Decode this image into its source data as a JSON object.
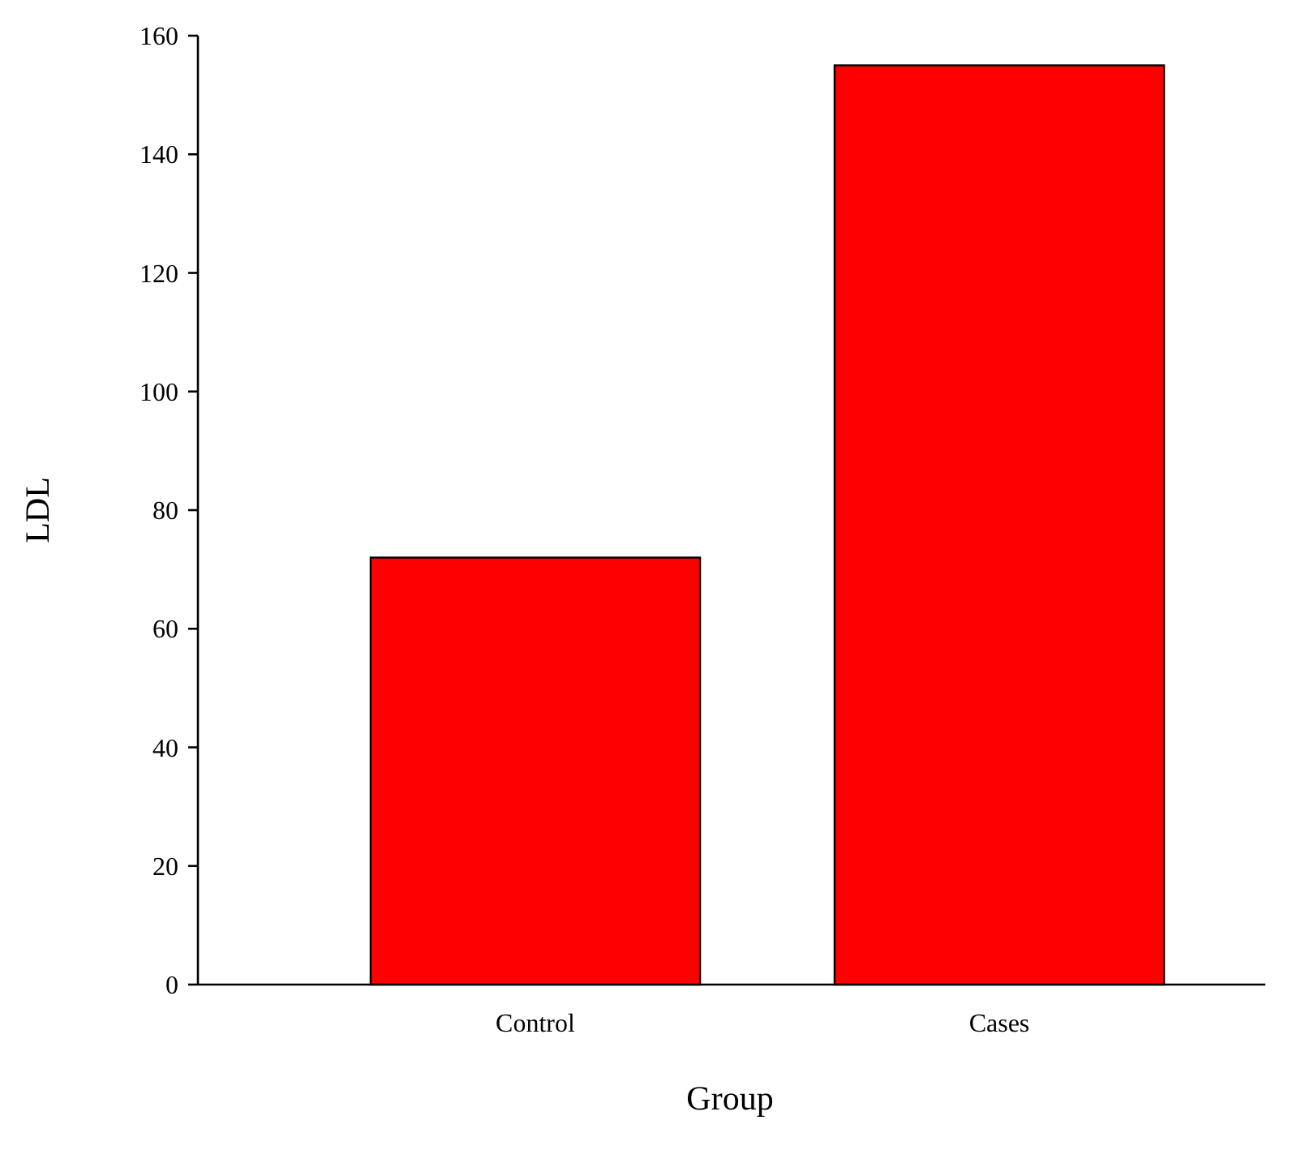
{
  "chart_data": {
    "type": "bar",
    "xlabel": "Group",
    "ylabel": "LDL",
    "categories": [
      "Control",
      "Cases"
    ],
    "values": [
      72,
      155
    ],
    "color": "#ff0000",
    "ylim": [
      0,
      160
    ],
    "yticks": [
      0,
      20,
      40,
      60,
      80,
      100,
      120,
      140,
      160
    ]
  }
}
